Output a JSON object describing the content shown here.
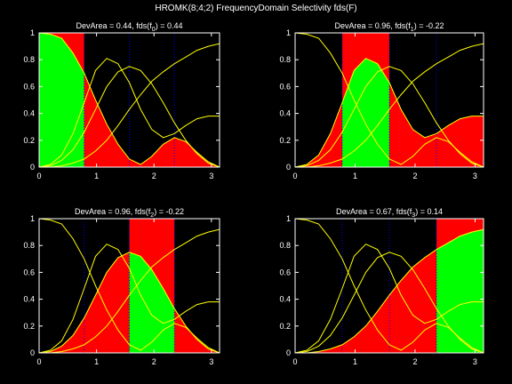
{
  "figure": {
    "suptitle": "HROMK(8;4;2) FrequencyDomain Selectivity fds(F)"
  },
  "colors": {
    "background": "#000000",
    "axes": "#ffffff",
    "filter_curves": "#ffff00",
    "passband_fill": "#00ff00",
    "deviation_fill": "#ff0000",
    "band_edges": "#0000ff"
  },
  "chart_data": [
    {
      "type": "area",
      "title": "DevArea = 0.44, fds(f_0) = 0.44",
      "title_prefix": "DevArea = 0.44, fds(f",
      "title_sub": "0",
      "title_suffix": ") = 0.44",
      "band_index": 0,
      "band": [
        0,
        0.785
      ],
      "xlim": [
        0,
        3.1416
      ],
      "ylim": [
        0,
        1
      ],
      "xticks": [
        0,
        1,
        2,
        3
      ],
      "yticks": [
        0,
        0.2,
        0.4,
        0.6,
        0.8,
        1
      ],
      "band_edges": [
        0.785,
        1.571,
        2.356
      ],
      "x": [
        0,
        0.196,
        0.393,
        0.589,
        0.785,
        0.982,
        1.178,
        1.374,
        1.571,
        1.767,
        1.963,
        2.16,
        2.356,
        2.553,
        2.749,
        2.945,
        3.142
      ],
      "series": [
        {
          "values": [
            1.0,
            0.99,
            0.96,
            0.85,
            0.7,
            0.5,
            0.32,
            0.17,
            0.06,
            0.02,
            0.08,
            0.17,
            0.22,
            0.19,
            0.11,
            0.04,
            0.0
          ]
        },
        {
          "values": [
            0.0,
            0.02,
            0.09,
            0.25,
            0.48,
            0.72,
            0.81,
            0.77,
            0.63,
            0.43,
            0.28,
            0.22,
            0.25,
            0.31,
            0.36,
            0.38,
            0.38
          ]
        },
        {
          "values": [
            0.0,
            0.01,
            0.05,
            0.13,
            0.26,
            0.43,
            0.6,
            0.71,
            0.75,
            0.72,
            0.62,
            0.48,
            0.33,
            0.2,
            0.1,
            0.03,
            0.0
          ]
        },
        {
          "values": [
            0.0,
            0.0,
            0.01,
            0.03,
            0.06,
            0.12,
            0.2,
            0.31,
            0.43,
            0.54,
            0.64,
            0.71,
            0.77,
            0.82,
            0.87,
            0.9,
            0.92
          ]
        }
      ]
    },
    {
      "type": "area",
      "title": "DevArea = 0.96, fds(f_1) = -0.22",
      "title_prefix": "DevArea = 0.96, fds(f",
      "title_sub": "1",
      "title_suffix": ") = -0.22",
      "band_index": 1,
      "band": [
        0.785,
        1.571
      ],
      "xlim": [
        0,
        3.1416
      ],
      "ylim": [
        0,
        1
      ],
      "xticks": [
        0,
        1,
        2,
        3
      ],
      "yticks": [
        0,
        0.2,
        0.4,
        0.6,
        0.8,
        1
      ],
      "band_edges": [
        0.785,
        1.571,
        2.356
      ]
    },
    {
      "type": "area",
      "title": "DevArea = 0.96, fds(f_2) = -0.22",
      "title_prefix": "DevArea = 0.96, fds(f",
      "title_sub": "2",
      "title_suffix": ") = -0.22",
      "band_index": 2,
      "band": [
        1.571,
        2.356
      ],
      "xlim": [
        0,
        3.1416
      ],
      "ylim": [
        0,
        1
      ],
      "xticks": [
        0,
        1,
        2,
        3
      ],
      "yticks": [
        0,
        0.2,
        0.4,
        0.6,
        0.8,
        1
      ],
      "band_edges": [
        0.785,
        1.571,
        2.356
      ]
    },
    {
      "type": "area",
      "title": "DevArea = 0.67, fds(f_3) = 0.14",
      "title_prefix": "DevArea = 0.67, fds(f",
      "title_sub": "3",
      "title_suffix": ") = 0.14",
      "band_index": 3,
      "band": [
        2.356,
        3.142
      ],
      "xlim": [
        0,
        3.1416
      ],
      "ylim": [
        0,
        1
      ],
      "xticks": [
        0,
        1,
        2,
        3
      ],
      "yticks": [
        0,
        0.2,
        0.4,
        0.6,
        0.8,
        1
      ],
      "band_edges": [
        0.785,
        1.571,
        2.356
      ]
    }
  ]
}
